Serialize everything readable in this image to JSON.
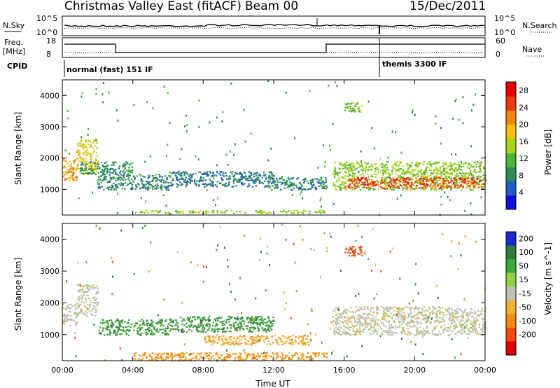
{
  "header": {
    "title": "Christmas Valley East (fitACF)",
    "beam": "Beam 00",
    "date": "15/Dec/2011"
  },
  "strip_labels": {
    "nsky": "N.Sky",
    "nsearch": "N.Search",
    "freq": "Freq.",
    "freq_unit": "[MHz]",
    "nave": "Nave",
    "cpid": "CPID"
  },
  "strip_ticks": {
    "noise_left": [
      "10^5",
      "10^0"
    ],
    "noise_right": [
      "10^5",
      "10^0"
    ],
    "freq_left": [
      "18",
      "8"
    ],
    "nave_right": [
      "60",
      "0"
    ]
  },
  "cpid_labels": {
    "first": "normal (fast) 151 IF",
    "second": "themis 3300 IF"
  },
  "colors": {
    "power_scale": [
      "#1010dd",
      "#1f5cc4",
      "#2e8b57",
      "#4ab33a",
      "#a8d41a",
      "#f0c010",
      "#f08a10",
      "#ee3a10",
      "#e80000"
    ],
    "velocity_scale": [
      "#1a2ad0",
      "#2e7a3c",
      "#3fa83a",
      "#8fd33f",
      "#c0c0b8",
      "#f0b030",
      "#f08a10",
      "#f04a10",
      "#e00000"
    ]
  },
  "chart_data": [
    {
      "type": "heatmap",
      "name": "power",
      "ylabel": "Slant Range [km]",
      "xlabel": "",
      "xlim": [
        "00:00",
        "24:00"
      ],
      "ylim": [
        180,
        4500
      ],
      "x_ticks": [
        "00:00",
        "04:00",
        "08:00",
        "12:00",
        "16:00",
        "20:00",
        "00:00"
      ],
      "y_ticks": [
        1000,
        2000,
        3000,
        4000
      ],
      "colorbar": {
        "label": "Power [dB]",
        "ticks": [
          4,
          8,
          12,
          16,
          20,
          24,
          28
        ],
        "range": [
          0,
          30
        ]
      },
      "regions": [
        {
          "t": [
            0.0,
            0.8
          ],
          "range": [
            1300,
            2000
          ],
          "value": 22
        },
        {
          "t": [
            0.8,
            2.0
          ],
          "range": [
            1500,
            2600
          ],
          "value": 18
        },
        {
          "t": [
            1.0,
            4.0
          ],
          "range": [
            1500,
            1900
          ],
          "value": 8
        },
        {
          "t": [
            2.0,
            6.0
          ],
          "range": [
            1000,
            1500
          ],
          "value": 7
        },
        {
          "t": [
            6.0,
            12.0
          ],
          "range": [
            1100,
            1600
          ],
          "value": 6
        },
        {
          "t": [
            12.0,
            15.0
          ],
          "range": [
            1000,
            1400
          ],
          "value": 7
        },
        {
          "t": [
            4.0,
            15.0
          ],
          "range": [
            250,
            350
          ],
          "value": 14
        },
        {
          "t": [
            15.3,
            24.0
          ],
          "range": [
            1000,
            1900
          ],
          "value": 14
        },
        {
          "t": [
            16.0,
            24.0
          ],
          "range": [
            1050,
            1400
          ],
          "value": 26
        },
        {
          "t": [
            16.0,
            17.0
          ],
          "range": [
            3500,
            3800
          ],
          "value": 12
        }
      ]
    },
    {
      "type": "heatmap",
      "name": "velocity",
      "ylabel": "Slant Range [km]",
      "xlabel": "Time UT",
      "xlim": [
        "00:00",
        "24:00"
      ],
      "ylim": [
        180,
        4500
      ],
      "x_ticks": [
        "00:00",
        "04:00",
        "08:00",
        "12:00",
        "16:00",
        "20:00",
        "00:00"
      ],
      "y_ticks": [
        1000,
        2000,
        3000,
        4000
      ],
      "colorbar": {
        "label": "Velocity [m s^-1]",
        "ticks": [
          200,
          100,
          50,
          15,
          -15,
          -50,
          -100,
          -200
        ]
      },
      "regions": [
        {
          "t": [
            0.0,
            0.8
          ],
          "range": [
            1300,
            2000
          ],
          "value": 0
        },
        {
          "t": [
            0.8,
            2.0
          ],
          "range": [
            1600,
            2600
          ],
          "value": 0
        },
        {
          "t": [
            2.0,
            6.0
          ],
          "range": [
            1000,
            1500
          ],
          "value": 70
        },
        {
          "t": [
            6.0,
            12.0
          ],
          "range": [
            1100,
            1600
          ],
          "value": 70
        },
        {
          "t": [
            4.0,
            15.0
          ],
          "range": [
            200,
            450
          ],
          "value": -60
        },
        {
          "t": [
            8.0,
            14.0
          ],
          "range": [
            700,
            1000
          ],
          "value": -40
        },
        {
          "t": [
            15.3,
            24.0
          ],
          "range": [
            1000,
            1900
          ],
          "value": 0
        },
        {
          "t": [
            16.0,
            17.0
          ],
          "range": [
            3500,
            3800
          ],
          "value": -150
        }
      ]
    }
  ]
}
